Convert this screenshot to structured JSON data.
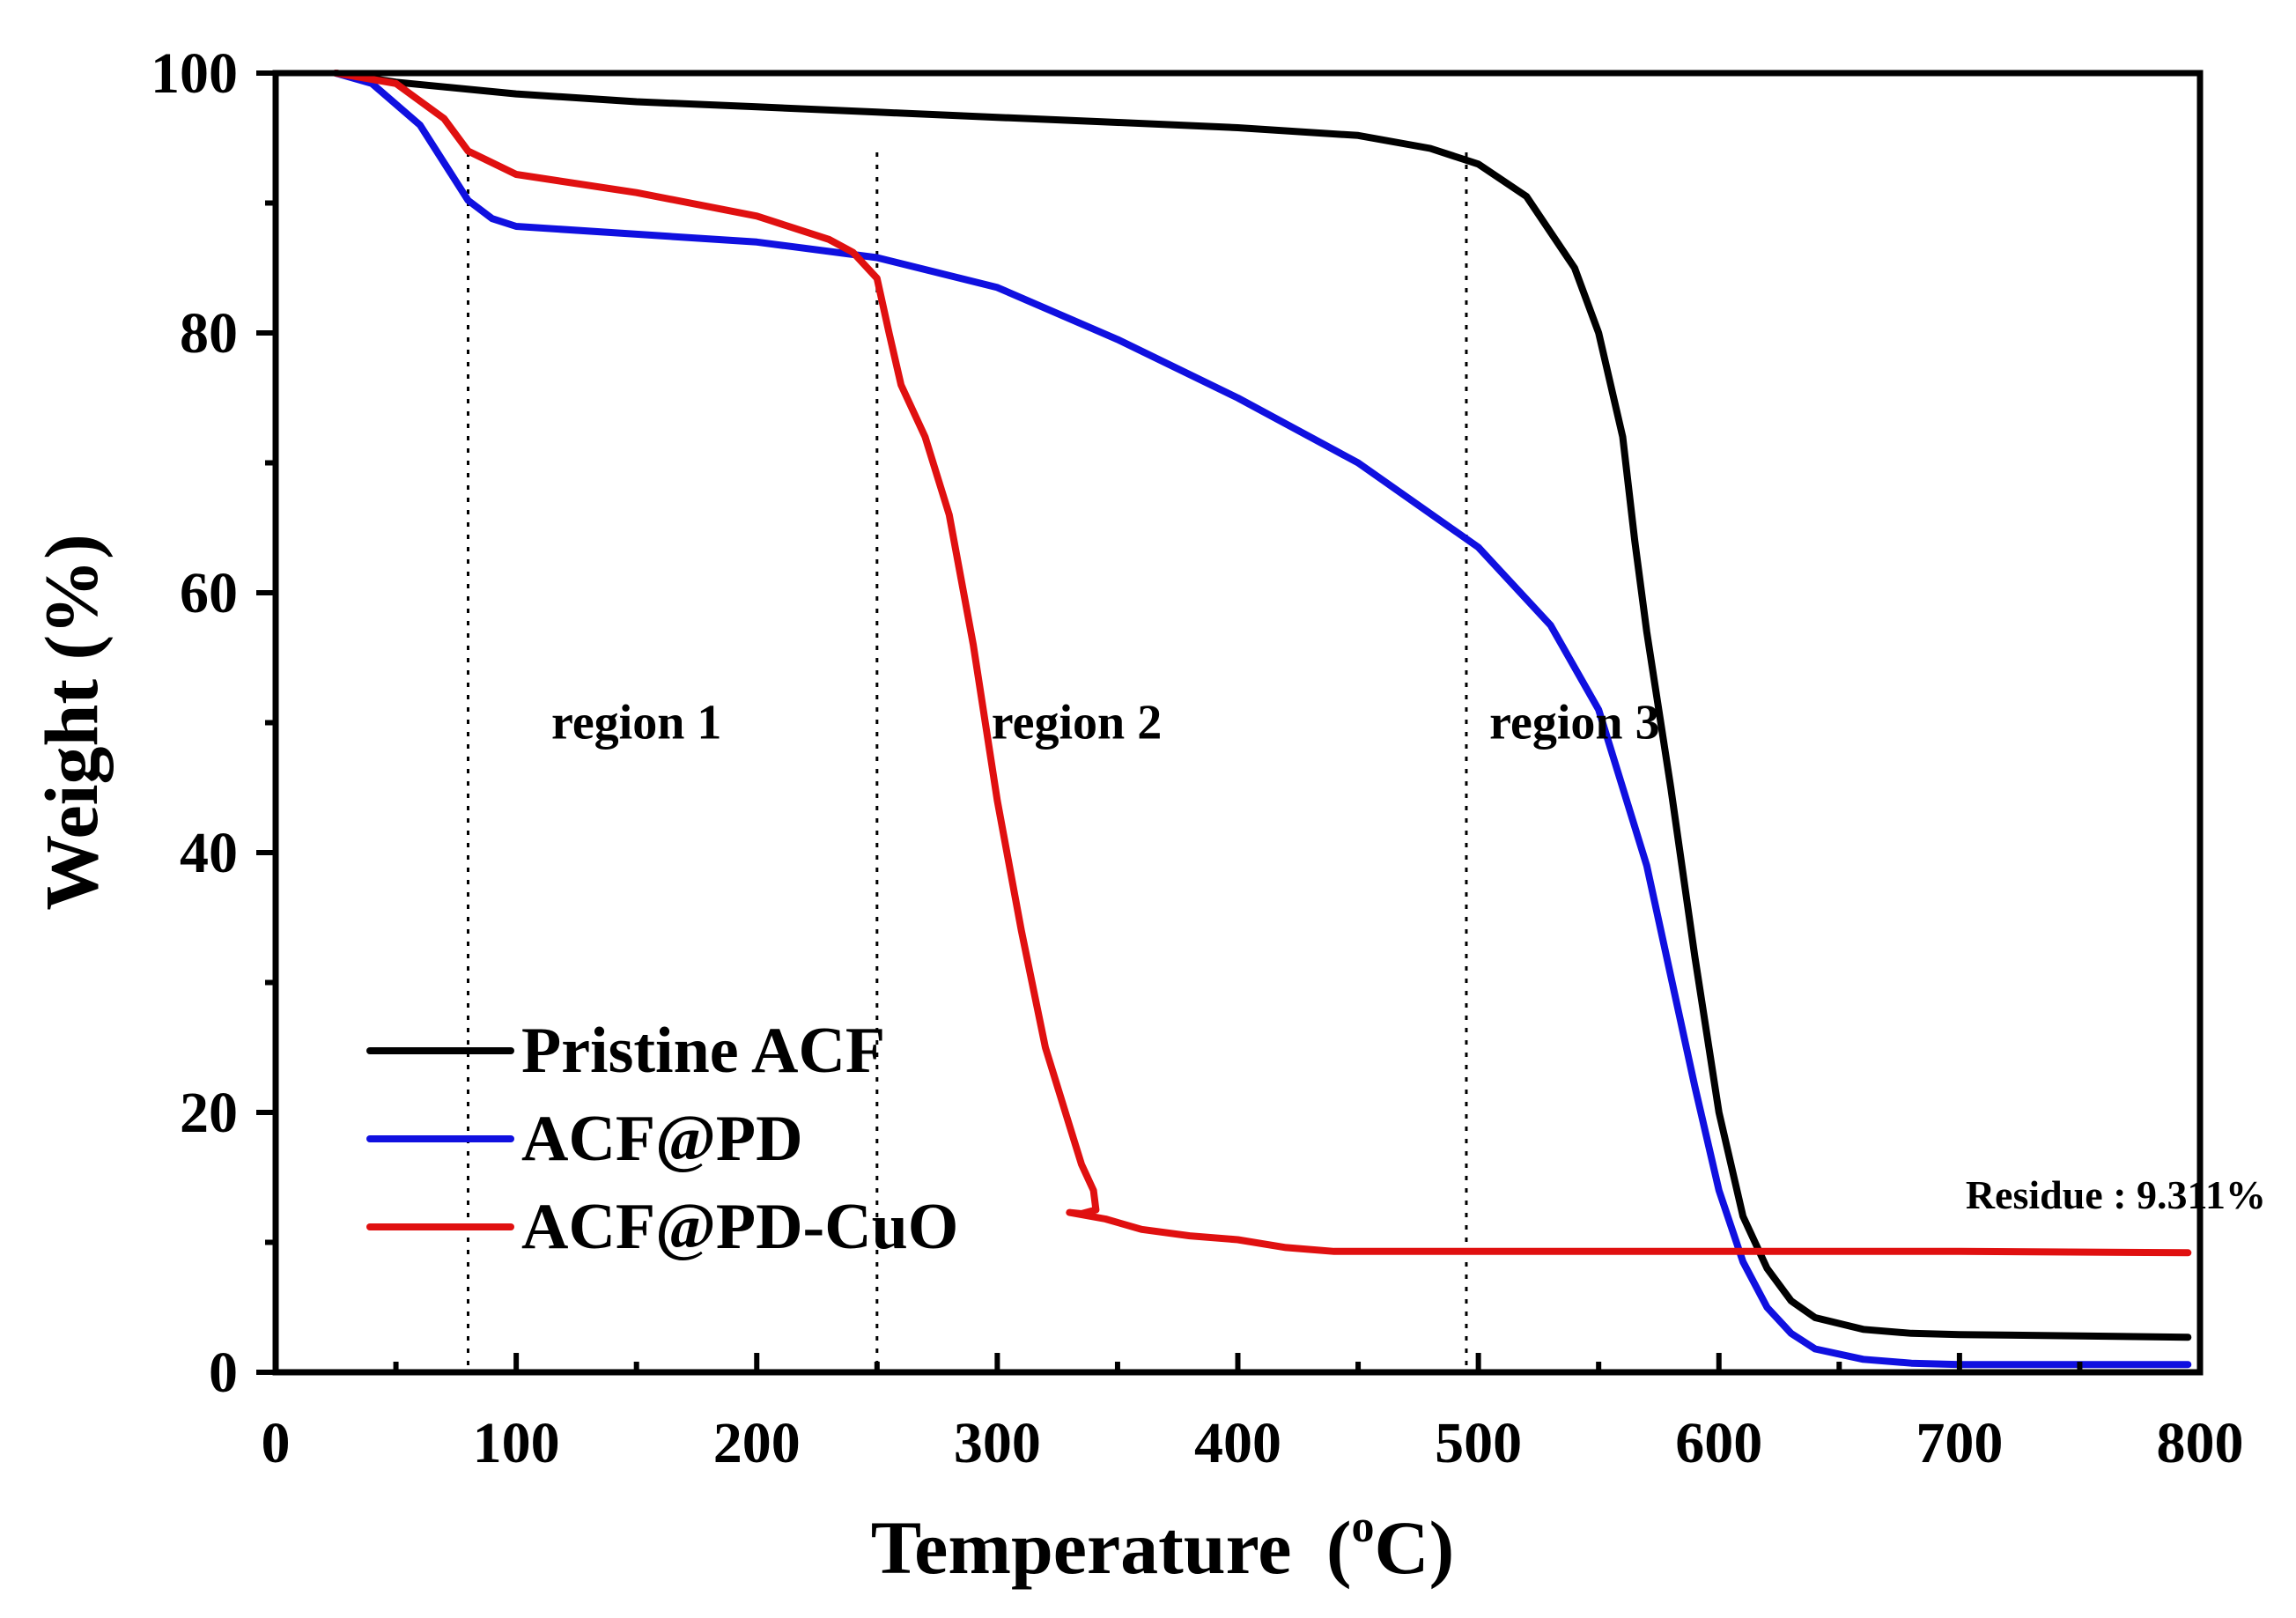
{
  "chart_data": {
    "type": "line",
    "title": "",
    "xlabel": "Temperature",
    "xlabel_unit_prefix": "(",
    "xlabel_unit_super": "o",
    "xlabel_unit_suffix": "C)",
    "ylabel": "Weight (%)",
    "xlim": [
      0,
      800
    ],
    "ylim": [
      0,
      100
    ],
    "x_ticks": [
      0,
      100,
      200,
      300,
      400,
      500,
      600,
      700,
      800
    ],
    "y_ticks": [
      0,
      20,
      40,
      60,
      80,
      100
    ],
    "grid": false,
    "legend_position": "bottom-left",
    "colors": {
      "Pristine ACF": "#000000",
      "ACF@PD": "#1010e0",
      "ACF@PD-CuO": "#e01010"
    },
    "series": [
      {
        "name": "Pristine ACF",
        "x": [
          25,
          50,
          100,
          150,
          200,
          250,
          300,
          350,
          400,
          450,
          480,
          500,
          520,
          540,
          550,
          560,
          565,
          570,
          580,
          590,
          600,
          610,
          620,
          630,
          640,
          660,
          680,
          700,
          750,
          795
        ],
        "y": [
          100,
          99.3,
          98.4,
          97.8,
          97.4,
          97,
          96.6,
          96.2,
          95.8,
          95.2,
          94.2,
          93,
          90.5,
          85,
          80,
          72,
          64,
          57,
          45,
          32,
          20,
          12,
          8,
          5.5,
          4.2,
          3.3,
          3,
          2.9,
          2.8,
          2.7
        ]
      },
      {
        "name": "ACF@PD",
        "x": [
          25,
          40,
          60,
          80,
          90,
          100,
          150,
          200,
          250,
          300,
          350,
          400,
          450,
          500,
          530,
          550,
          570,
          590,
          600,
          610,
          620,
          630,
          640,
          660,
          680,
          700,
          750,
          795
        ],
        "y": [
          100,
          99.2,
          96,
          90.2,
          88.8,
          88.2,
          87.6,
          87,
          85.8,
          83.5,
          79.5,
          75,
          70,
          63.5,
          57.5,
          51,
          39,
          22,
          14,
          8.5,
          5,
          3,
          1.8,
          1,
          0.7,
          0.6,
          0.6,
          0.6
        ]
      },
      {
        "name": "ACF@PD-CuO",
        "x": [
          25,
          50,
          70,
          80,
          100,
          150,
          200,
          230,
          240,
          250,
          255,
          260,
          270,
          280,
          290,
          300,
          310,
          320,
          330,
          335,
          340,
          341,
          335,
          330,
          345,
          360,
          380,
          400,
          420,
          440,
          500,
          600,
          700,
          795
        ],
        "y": [
          100,
          99.2,
          96.5,
          94,
          92.2,
          90.8,
          89,
          87.2,
          86.2,
          84.2,
          80,
          76,
          72,
          66,
          56,
          44,
          34,
          25,
          19,
          16,
          14,
          12.5,
          12.2,
          12.3,
          11.8,
          11,
          10.5,
          10.2,
          9.6,
          9.3,
          9.3,
          9.3,
          9.3,
          9.2
        ]
      }
    ],
    "vlines": [
      80,
      250,
      495
    ],
    "region_labels": [
      {
        "text": "region 1",
        "x": 150,
        "y": 50
      },
      {
        "text": "region 2",
        "x": 333,
        "y": 50
      },
      {
        "text": "region 3",
        "x": 540,
        "y": 50
      }
    ],
    "annotations": [
      {
        "text": "Residue : 9.311%",
        "x": 765,
        "y": 12.6
      }
    ]
  }
}
